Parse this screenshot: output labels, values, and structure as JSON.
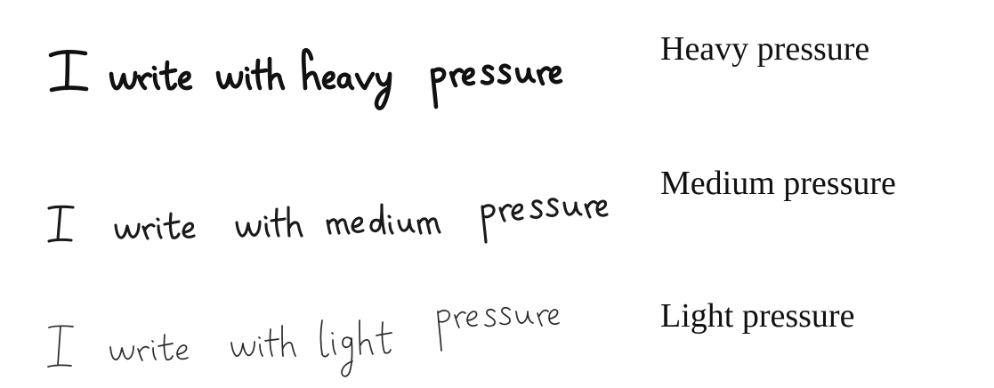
{
  "samples": [
    {
      "id": "heavy",
      "handwriting": "I write with heavy pressure",
      "label": "Heavy pressure"
    },
    {
      "id": "medium",
      "handwriting": "I write with medium pressure",
      "label": "Medium pressure"
    },
    {
      "id": "light",
      "handwriting": "I write with light pressure",
      "label": "Light pressure"
    }
  ]
}
